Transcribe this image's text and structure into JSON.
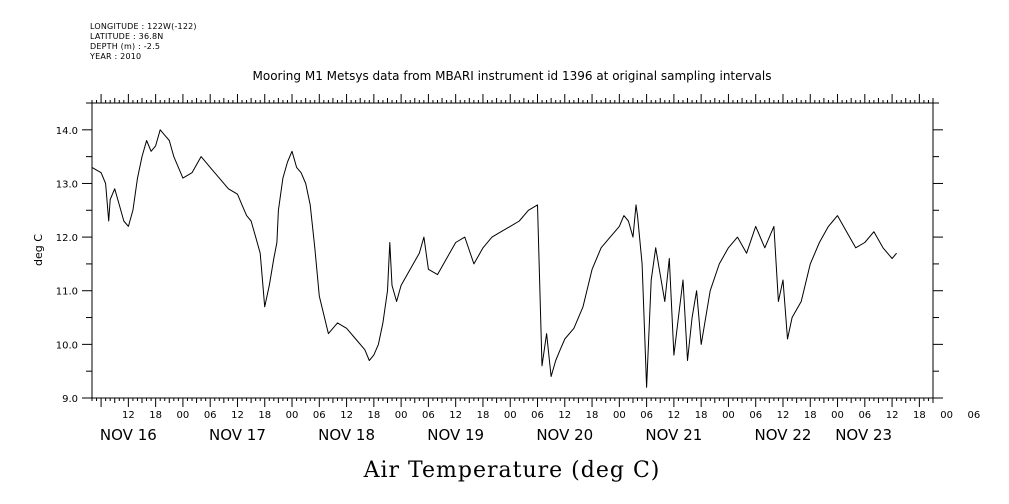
{
  "header": {
    "meta_lines": [
      "LONGITUDE : 122W(-122)",
      "LATITUDE : 36.8N",
      "DEPTH (m) : -2.5",
      "YEAR : 2010"
    ]
  },
  "chart_data": {
    "type": "line",
    "title": "Mooring M1 Metsys data from MBARI instrument id 1396 at original sampling intervals",
    "xlabel": "Air Temperature (deg C)",
    "ylabel": "deg C",
    "ylim": [
      9.0,
      14.5
    ],
    "xlim": [
      "2010-11-16T04:00",
      "2010-11-23T21:00"
    ],
    "yticks": [
      "9.0",
      "10.0",
      "11.0",
      "12.0",
      "13.0",
      "14.0"
    ],
    "hour_ticks": [
      "12",
      "18",
      "00",
      "06",
      "12",
      "18",
      "00",
      "06",
      "12",
      "18",
      "00",
      "06",
      "12",
      "18",
      "00",
      "06",
      "12",
      "18",
      "00",
      "06",
      "12",
      "18",
      "00",
      "06",
      "12",
      "18",
      "00",
      "06",
      "12",
      "18",
      "00",
      "06"
    ],
    "day_labels": [
      "NOV 16",
      "NOV 17",
      "NOV 18",
      "NOV 19",
      "NOV 20",
      "NOV 21",
      "NOV 22",
      "NOV 23"
    ],
    "grid": false,
    "series": [
      {
        "name": "",
        "x": [
          "2010-11-16T04:00",
          "2010-11-16T06:00",
          "2010-11-16T07:00",
          "2010-11-16T07:40",
          "2010-11-16T08:00",
          "2010-11-16T09:00",
          "2010-11-16T10:00",
          "2010-11-16T11:00",
          "2010-11-16T12:00",
          "2010-11-16T13:00",
          "2010-11-16T14:00",
          "2010-11-16T15:00",
          "2010-11-16T16:00",
          "2010-11-16T17:00",
          "2010-11-16T18:00",
          "2010-11-16T19:00",
          "2010-11-16T20:00",
          "2010-11-16T21:00",
          "2010-11-16T22:00",
          "2010-11-17T00:00",
          "2010-11-17T02:00",
          "2010-11-17T04:00",
          "2010-11-17T06:00",
          "2010-11-17T08:00",
          "2010-11-17T10:00",
          "2010-11-17T12:00",
          "2010-11-17T13:00",
          "2010-11-17T14:00",
          "2010-11-17T15:00",
          "2010-11-17T16:00",
          "2010-11-17T17:00",
          "2010-11-17T18:00",
          "2010-11-17T19:00",
          "2010-11-17T20:00",
          "2010-11-17T20:40",
          "2010-11-17T21:00",
          "2010-11-17T22:00",
          "2010-11-17T23:00",
          "2010-11-18T00:00",
          "2010-11-18T01:00",
          "2010-11-18T02:00",
          "2010-11-18T03:00",
          "2010-11-18T04:00",
          "2010-11-18T05:00",
          "2010-11-18T06:00",
          "2010-11-18T08:00",
          "2010-11-18T10:00",
          "2010-11-18T12:00",
          "2010-11-18T14:00",
          "2010-11-18T16:00",
          "2010-11-18T17:00",
          "2010-11-18T18:00",
          "2010-11-18T19:00",
          "2010-11-18T20:00",
          "2010-11-18T21:00",
          "2010-11-18T21:30",
          "2010-11-18T22:00",
          "2010-11-18T23:00",
          "2010-11-19T00:00",
          "2010-11-19T02:00",
          "2010-11-19T04:00",
          "2010-11-19T05:00",
          "2010-11-19T06:00",
          "2010-11-19T08:00",
          "2010-11-19T10:00",
          "2010-11-19T12:00",
          "2010-11-19T14:00",
          "2010-11-19T16:00",
          "2010-11-19T18:00",
          "2010-11-19T20:00",
          "2010-11-19T22:00",
          "2010-11-20T00:00",
          "2010-11-20T02:00",
          "2010-11-20T04:00",
          "2010-11-20T06:00",
          "2010-11-20T07:00",
          "2010-11-20T08:00",
          "2010-11-20T09:00",
          "2010-11-20T10:00",
          "2010-11-20T11:00",
          "2010-11-20T12:00",
          "2010-11-20T14:00",
          "2010-11-20T16:00",
          "2010-11-20T18:00",
          "2010-11-20T20:00",
          "2010-11-20T22:00",
          "2010-11-21T00:00",
          "2010-11-21T01:00",
          "2010-11-21T02:00",
          "2010-11-21T03:00",
          "2010-11-21T03:40",
          "2010-11-21T04:00",
          "2010-11-21T05:00",
          "2010-11-21T06:00",
          "2010-11-21T06:40",
          "2010-11-21T07:00",
          "2010-11-21T08:00",
          "2010-11-21T09:00",
          "2010-11-21T10:00",
          "2010-11-21T11:00",
          "2010-11-21T12:00",
          "2010-11-21T13:00",
          "2010-11-21T14:00",
          "2010-11-21T15:00",
          "2010-11-21T16:00",
          "2010-11-21T17:00",
          "2010-11-21T18:00",
          "2010-11-21T20:00",
          "2010-11-21T22:00",
          "2010-11-22T00:00",
          "2010-11-22T02:00",
          "2010-11-22T04:00",
          "2010-11-22T06:00",
          "2010-11-22T08:00",
          "2010-11-22T10:00",
          "2010-11-22T11:00",
          "2010-11-22T12:00",
          "2010-11-22T13:00",
          "2010-11-22T14:00",
          "2010-11-22T16:00",
          "2010-11-22T18:00",
          "2010-11-22T20:00",
          "2010-11-22T22:00",
          "2010-11-22T23:00",
          "2010-11-23T00:00",
          "2010-11-23T02:00",
          "2010-11-23T04:00",
          "2010-11-23T06:00",
          "2010-11-23T08:00",
          "2010-11-23T10:00",
          "2010-11-23T12:00",
          "2010-11-23T13:00"
        ],
        "y": [
          13.3,
          13.2,
          13.0,
          12.3,
          12.7,
          12.9,
          12.6,
          12.3,
          12.2,
          12.5,
          13.1,
          13.5,
          13.8,
          13.6,
          13.7,
          14.0,
          13.9,
          13.8,
          13.5,
          13.1,
          13.2,
          13.5,
          13.3,
          13.1,
          12.9,
          12.8,
          12.6,
          12.4,
          12.3,
          12.0,
          11.7,
          10.7,
          11.1,
          11.6,
          11.9,
          12.5,
          13.1,
          13.4,
          13.6,
          13.3,
          13.2,
          13.0,
          12.6,
          11.8,
          10.9,
          10.2,
          10.4,
          10.3,
          10.1,
          9.9,
          9.7,
          9.8,
          10.0,
          10.4,
          11.0,
          11.9,
          11.1,
          10.8,
          11.1,
          11.4,
          11.7,
          12.0,
          11.4,
          11.3,
          11.6,
          11.9,
          12.0,
          11.5,
          11.8,
          12.0,
          12.1,
          12.2,
          12.3,
          12.5,
          12.6,
          9.6,
          10.2,
          9.4,
          9.7,
          9.9,
          10.1,
          10.3,
          10.7,
          11.4,
          11.8,
          12.0,
          12.2,
          12.4,
          12.3,
          12.0,
          12.6,
          12.4,
          11.5,
          9.2,
          10.5,
          11.2,
          11.8,
          11.3,
          10.8,
          11.6,
          9.8,
          10.5,
          11.2,
          9.7,
          10.5,
          11.0,
          10.0,
          11.0,
          11.5,
          11.8,
          12.0,
          11.7,
          12.2,
          11.8,
          12.2,
          10.8,
          11.2,
          10.1,
          10.5,
          10.8,
          11.5,
          11.9,
          12.2,
          12.3,
          12.4,
          12.1,
          11.8,
          11.9,
          12.1,
          11.8,
          11.6,
          11.7
        ]
      }
    ]
  }
}
